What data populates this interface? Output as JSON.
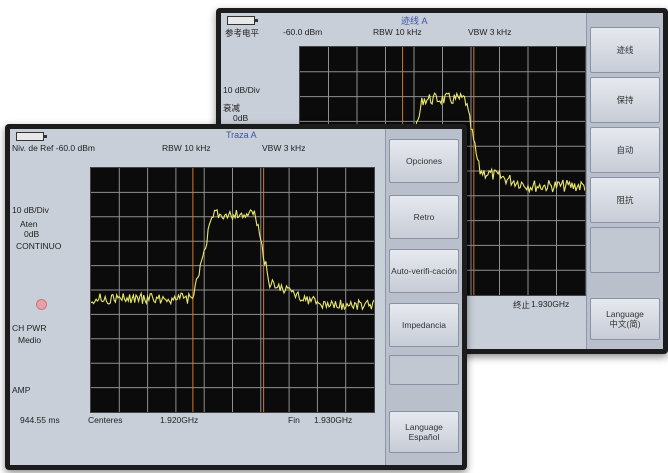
{
  "back_screen": {
    "title": "迹线 A",
    "ref_level_label": "参考电平",
    "ref_level_value": "-60.0 dBm",
    "rbw": "RBW 10 kHz",
    "vbw": "VBW 3 kHz",
    "scale": "10 dB/Div",
    "side_line1": "衰减",
    "side_line2": "0dB",
    "footer_stop": "终止",
    "footer_stop_freq": "1.930GHz",
    "softkeys": [
      "迹线",
      "保持",
      "自动",
      "阻抗",
      "",
      "Language\n中文(简)"
    ]
  },
  "front_screen": {
    "title": "Traza A",
    "ref_level": "Niv. de Ref -60.0 dBm",
    "rbw": "RBW 10 kHz",
    "vbw": "VBW 3 kHz",
    "scale": "10 dB/Div",
    "atten_label": "Aten",
    "atten_value": "0dB",
    "mode": "CONTINUO",
    "ch_pwr": "CH PWR",
    "ch_pwr_mode": "Medio",
    "amp": "AMP",
    "sweep_time": "944.55 ms",
    "center_label": "Centeres",
    "center_freq": "1.920GHz",
    "stop_label": "Fin",
    "stop_freq": "1.930GHz",
    "softkeys": [
      "Opciones",
      "Retro",
      "Auto-verifi-cación",
      "Impedancia",
      "",
      "",
      "Language\nEspañol"
    ]
  }
}
